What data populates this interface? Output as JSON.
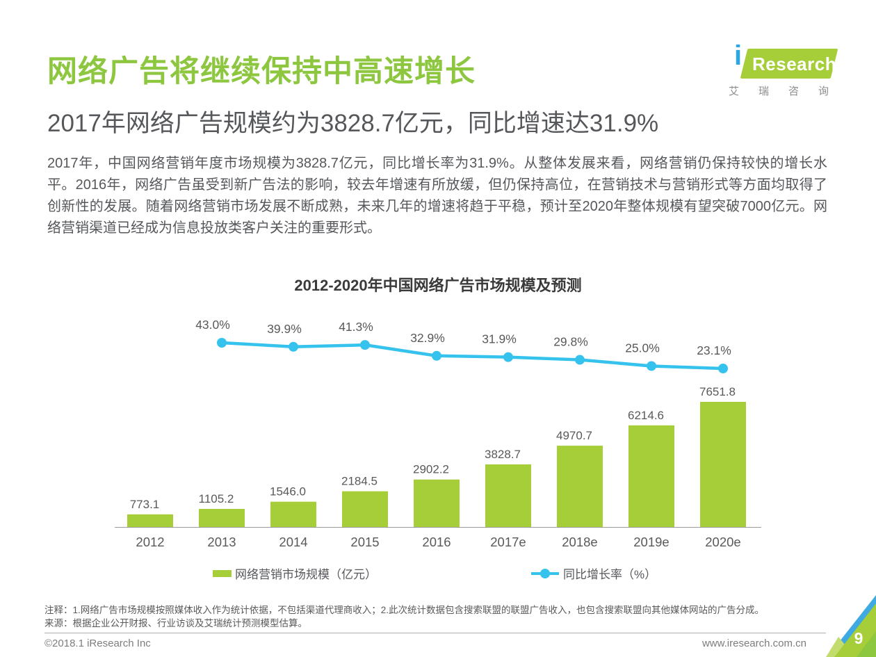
{
  "header": {
    "title": "网络广告将继续保持中高速增长",
    "subtitle": "2017年网络广告规模约为3828.7亿元，同比增速达31.9%",
    "paragraph": "2017年，中国网络营销年度市场规模为3828.7亿元，同比增长率为31.9%。从整体发展来看，网络营销仍保持较快的增长水平。2016年，网络广告虽受到新广告法的影响，较去年增速有所放缓，但仍保持高位，在营销技术与营销形式等方面均取得了创新性的发展。随着网络营销市场发展不断成熟，未来几年的增速将趋于平稳，预计至2020年整体规模有望突破7000亿元。网络营销渠道已经成为信息投放类客户关注的重要形式。",
    "logo": {
      "i": "i",
      "brand": "Research",
      "cn": "艾瑞咨询"
    }
  },
  "chart_data": {
    "type": "bar",
    "title": "2012-2020年中国网络广告市场规模及预测",
    "categories": [
      "2012",
      "2013",
      "2014",
      "2015",
      "2016",
      "2017e",
      "2018e",
      "2019e",
      "2020e"
    ],
    "series": [
      {
        "name": "网络营销市场规模（亿元）",
        "type": "bar",
        "values": [
          773.1,
          1105.2,
          1546.0,
          2184.5,
          2902.2,
          3828.7,
          4970.7,
          6214.6,
          7651.8
        ],
        "labels": [
          "773.1",
          "1105.2",
          "1546.0",
          "2184.5",
          "2902.2",
          "3828.7",
          "4970.7",
          "6214.6",
          "7651.8"
        ]
      },
      {
        "name": "同比增长率（%）",
        "type": "line",
        "values": [
          null,
          43.0,
          39.9,
          41.3,
          32.9,
          31.9,
          29.8,
          25.0,
          23.1
        ],
        "labels": [
          null,
          "43.0%",
          "39.9%",
          "41.3%",
          "32.9%",
          "31.9%",
          "29.8%",
          "25.0%",
          "23.1%"
        ]
      }
    ],
    "colors": {
      "bar": "#A5CE39",
      "line": "#35C3EE",
      "axis": "#9B9B9B",
      "label_text": "#58595B"
    },
    "legend_position": "bottom",
    "grid": false,
    "y_axis_visible": false
  },
  "notes": {
    "note": "注释：1.网络广告市场规模按照媒体收入作为统计依据，不包括渠道代理商收入；2.此次统计数据包含搜索联盟的联盟广告收入，也包含搜索联盟向其他媒体网站的广告分成。",
    "source": "来源：根据企业公开财报、行业访谈及艾瑞统计预测模型估算。"
  },
  "footer": {
    "copyright": "©2018.1 iResearch Inc",
    "website": "www.iresearch.com.cn",
    "page": "9"
  }
}
